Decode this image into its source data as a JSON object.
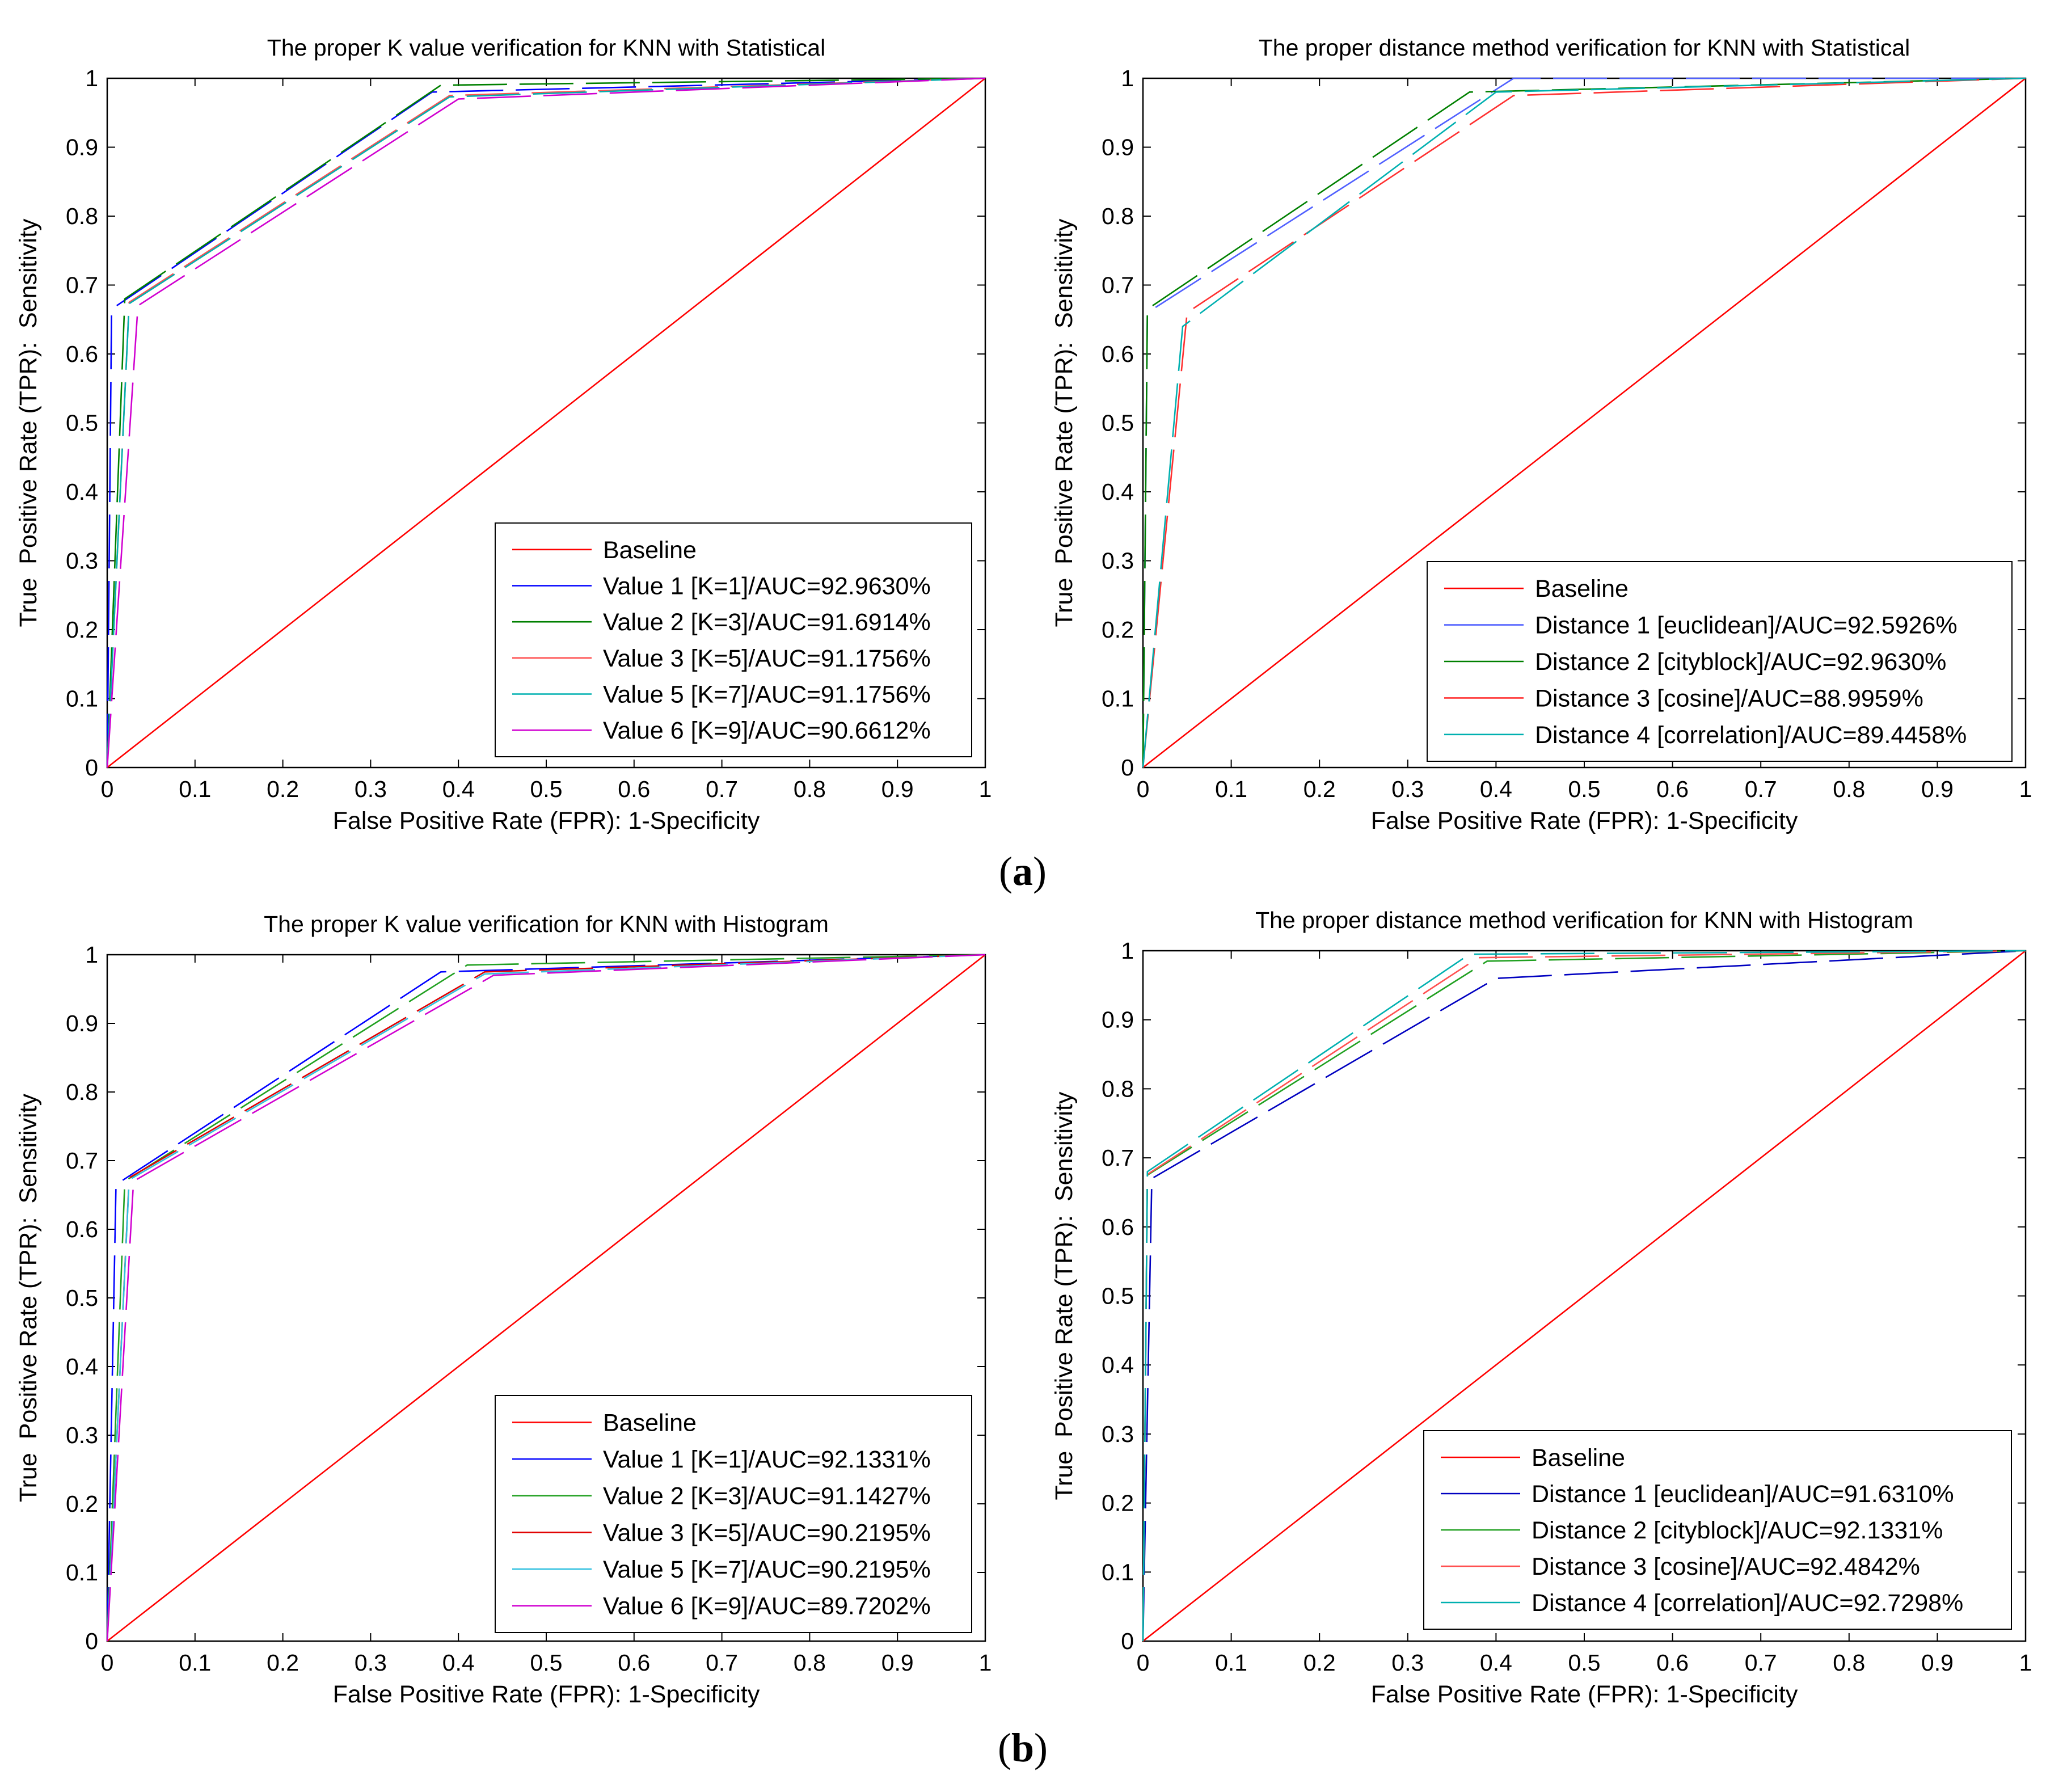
{
  "figure": {
    "panel_labels": [
      {
        "open": "(",
        "letter": "a",
        "close": ")"
      },
      {
        "open": "(",
        "letter": "b",
        "close": ")"
      }
    ]
  },
  "chart_data": [
    {
      "type": "line",
      "title": "The proper K value verification for KNN with Statistical",
      "xlabel": "False Positive Rate (FPR): 1-Specificity",
      "ylabel": "True  Positive Rate (TPR):  Sensitivity",
      "xlim": [
        0,
        1
      ],
      "ylim": [
        0,
        1
      ],
      "xticks": [
        "0",
        "0.1",
        "0.2",
        "0.3",
        "0.4",
        "0.5",
        "0.6",
        "0.7",
        "0.8",
        "0.9",
        "1"
      ],
      "yticks": [
        "0",
        "0.1",
        "0.2",
        "0.3",
        "0.4",
        "0.5",
        "0.6",
        "0.7",
        "0.8",
        "0.9",
        "1"
      ],
      "grid": false,
      "legend_position": "bottom-right",
      "series": [
        {
          "name": "Baseline",
          "color": "#ff0000",
          "dashed": false,
          "x": [
            0,
            1
          ],
          "y": [
            0,
            1
          ]
        },
        {
          "name": "Value 1 [K=1]/AUC=92.9630%",
          "color": "#0000ff",
          "dashed": true,
          "x": [
            0,
            0.005,
            0.37,
            1
          ],
          "y": [
            0,
            0.665,
            0.98,
            1
          ]
        },
        {
          "name": "Value 2 [K=3]/AUC=91.6914%",
          "color": "#008000",
          "dashed": true,
          "x": [
            0,
            0.02,
            0.38,
            1
          ],
          "y": [
            0,
            0.68,
            0.99,
            1
          ]
        },
        {
          "name": "Value 3 [K=5]/AUC=91.1756%",
          "color": "#ff5050",
          "dashed": true,
          "x": [
            0,
            0.025,
            0.39,
            1
          ],
          "y": [
            0,
            0.675,
            0.975,
            1
          ]
        },
        {
          "name": "Value 5 [K=7]/AUC=91.1756%",
          "color": "#00b0b0",
          "dashed": true,
          "x": [
            0,
            0.025,
            0.39,
            1
          ],
          "y": [
            0,
            0.673,
            0.973,
            1
          ]
        },
        {
          "name": "Value 6 [K=9]/AUC=90.6612%",
          "color": "#d000d0",
          "dashed": true,
          "x": [
            0,
            0.035,
            0.4,
            1
          ],
          "y": [
            0,
            0.67,
            0.97,
            1
          ]
        }
      ]
    },
    {
      "type": "line",
      "title": "The proper distance method verification for KNN with Statistical",
      "xlabel": "False Positive Rate (FPR): 1-Specificity",
      "ylabel": "True  Positive Rate (TPR):  Sensitivity",
      "xlim": [
        0,
        1
      ],
      "ylim": [
        0,
        1
      ],
      "xticks": [
        "0",
        "0.1",
        "0.2",
        "0.3",
        "0.4",
        "0.5",
        "0.6",
        "0.7",
        "0.8",
        "0.9",
        "1"
      ],
      "yticks": [
        "0",
        "0.1",
        "0.2",
        "0.3",
        "0.4",
        "0.5",
        "0.6",
        "0.7",
        "0.8",
        "0.9",
        "1"
      ],
      "grid": false,
      "legend_position": "bottom-right",
      "series": [
        {
          "name": "Baseline",
          "color": "#ff0000",
          "dashed": false,
          "x": [
            0,
            1
          ],
          "y": [
            0,
            1
          ]
        },
        {
          "name": "Distance 1 [euclidean]/AUC=92.5926%",
          "color": "#5060ff",
          "dashed": true,
          "x": [
            0,
            0.005,
            0.42,
            1
          ],
          "y": [
            0,
            0.66,
            1,
            1
          ]
        },
        {
          "name": "Distance 2 [cityblock]/AUC=92.9630%",
          "color": "#008000",
          "dashed": true,
          "x": [
            0,
            0.005,
            0.37,
            1
          ],
          "y": [
            0,
            0.665,
            0.98,
            1
          ]
        },
        {
          "name": "Distance 3 [cosine]/AUC=88.9959%",
          "color": "#ff3030",
          "dashed": true,
          "x": [
            0,
            0.05,
            0.42,
            1
          ],
          "y": [
            0,
            0.66,
            0.975,
            1
          ]
        },
        {
          "name": "Distance 4 [correlation]/AUC=89.4458%",
          "color": "#00b0b0",
          "dashed": true,
          "x": [
            0,
            0.045,
            0.4,
            1
          ],
          "y": [
            0,
            0.64,
            0.98,
            1
          ]
        }
      ]
    },
    {
      "type": "line",
      "title": "The proper K value verification for KNN with Histogram",
      "xlabel": "False Positive Rate (FPR): 1-Specificity",
      "ylabel": "True  Positive Rate (TPR):  Sensitivity",
      "xlim": [
        0,
        1
      ],
      "ylim": [
        0,
        1
      ],
      "xticks": [
        "0",
        "0.1",
        "0.2",
        "0.3",
        "0.4",
        "0.5",
        "0.6",
        "0.7",
        "0.8",
        "0.9",
        "1"
      ],
      "yticks": [
        "0",
        "0.1",
        "0.2",
        "0.3",
        "0.4",
        "0.5",
        "0.6",
        "0.7",
        "0.8",
        "0.9",
        "1"
      ],
      "grid": false,
      "legend_position": "bottom-right",
      "series": [
        {
          "name": "Baseline",
          "color": "#ff0000",
          "dashed": false,
          "x": [
            0,
            1
          ],
          "y": [
            0,
            1
          ]
        },
        {
          "name": "Value 1 [K=1]/AUC=92.1331%",
          "color": "#0000ff",
          "dashed": true,
          "x": [
            0,
            0.01,
            0.38,
            1
          ],
          "y": [
            0,
            0.665,
            0.975,
            1
          ]
        },
        {
          "name": "Value 2 [K=3]/AUC=91.1427%",
          "color": "#20a020",
          "dashed": true,
          "x": [
            0,
            0.02,
            0.41,
            1
          ],
          "y": [
            0,
            0.67,
            0.985,
            1
          ]
        },
        {
          "name": "Value 3 [K=5]/AUC=90.2195%",
          "color": "#e00000",
          "dashed": true,
          "x": [
            0,
            0.025,
            0.43,
            1
          ],
          "y": [
            0,
            0.675,
            0.975,
            1
          ]
        },
        {
          "name": "Value 5 [K=7]/AUC=90.2195%",
          "color": "#30c0e0",
          "dashed": true,
          "x": [
            0,
            0.025,
            0.43,
            1
          ],
          "y": [
            0,
            0.672,
            0.972,
            1
          ]
        },
        {
          "name": "Value 6 [K=9]/AUC=89.7202%",
          "color": "#d000d0",
          "dashed": true,
          "x": [
            0,
            0.03,
            0.44,
            1
          ],
          "y": [
            0,
            0.67,
            0.97,
            1
          ]
        }
      ]
    },
    {
      "type": "line",
      "title": "The proper distance method verification for KNN with Histogram",
      "xlabel": "False Positive Rate (FPR): 1-Specificity",
      "ylabel": "True  Positive Rate (TPR):  Sensitivity",
      "xlim": [
        0,
        1
      ],
      "ylim": [
        0,
        1
      ],
      "xticks": [
        "0",
        "0.1",
        "0.2",
        "0.3",
        "0.4",
        "0.5",
        "0.6",
        "0.7",
        "0.8",
        "0.9",
        "1"
      ],
      "yticks": [
        "0",
        "0.1",
        "0.2",
        "0.3",
        "0.4",
        "0.5",
        "0.6",
        "0.7",
        "0.8",
        "0.9",
        "1"
      ],
      "grid": false,
      "legend_position": "bottom-right",
      "series": [
        {
          "name": "Baseline",
          "color": "#ff0000",
          "dashed": false,
          "x": [
            0,
            1
          ],
          "y": [
            0,
            1
          ]
        },
        {
          "name": "Distance 1 [euclidean]/AUC=91.6310%",
          "color": "#0000c0",
          "dashed": true,
          "x": [
            0,
            0.01,
            0.4,
            1
          ],
          "y": [
            0,
            0.67,
            0.96,
            1
          ]
        },
        {
          "name": "Distance 2 [cityblock]/AUC=92.1331%",
          "color": "#20a020",
          "dashed": true,
          "x": [
            0,
            0.005,
            0.39,
            1
          ],
          "y": [
            0,
            0.675,
            0.985,
            1
          ]
        },
        {
          "name": "Distance 3 [cosine]/AUC=92.4842%",
          "color": "#ff5050",
          "dashed": true,
          "x": [
            0,
            0.005,
            0.38,
            1
          ],
          "y": [
            0,
            0.676,
            0.99,
            1
          ]
        },
        {
          "name": "Distance 4 [correlation]/AUC=92.7298%",
          "color": "#00b0b0",
          "dashed": true,
          "x": [
            0,
            0.005,
            0.37,
            1
          ],
          "y": [
            0,
            0.68,
            0.995,
            1
          ]
        }
      ]
    }
  ]
}
